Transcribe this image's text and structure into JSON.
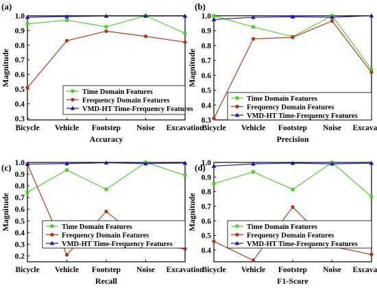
{
  "colors": {
    "time_domain": "#55cc33",
    "frequency_domain": "#b03a1a",
    "vmd_ht": "#1a1aaa"
  },
  "chart_data": [
    {
      "type": "line",
      "panel_label": "(a)",
      "xlabel": "Accuracy",
      "ylabel": "Magnitude",
      "categories": [
        "Bicycle",
        "Vehicle",
        "Footstep",
        "Noise",
        "Excavation"
      ],
      "ylim": [
        0.29,
        1.0
      ],
      "yticks": [
        "0.3",
        "0.4",
        "0.5",
        "0.6",
        "0.7",
        "0.8",
        "0.9",
        "1.0"
      ],
      "series": [
        {
          "name": "Time Domain Features",
          "marker": "square",
          "values": [
            0.945,
            0.97,
            0.925,
            1.0,
            0.88
          ]
        },
        {
          "name": "Frequency Domain Features",
          "marker": "circle",
          "values": [
            0.51,
            0.83,
            0.895,
            0.86,
            0.82
          ]
        },
        {
          "name": "VMD-HT Time-Frequency Features",
          "marker": "triangle",
          "values": [
            0.99,
            0.995,
            0.998,
            0.998,
            0.998
          ]
        }
      ]
    },
    {
      "type": "line",
      "panel_label": "(b)",
      "xlabel": "Precision",
      "ylabel": "Magnitude",
      "categories": [
        "Bicycle",
        "Vehicle",
        "Footstep",
        "Noise",
        "Excavation"
      ],
      "ylim": [
        0.3,
        1.0
      ],
      "yticks": [
        "0.3",
        "0.4",
        "0.5",
        "0.6",
        "0.7",
        "0.8",
        "0.9",
        "1.0"
      ],
      "series": [
        {
          "name": "Time Domain Features",
          "marker": "square",
          "values": [
            1.0,
            0.925,
            0.86,
            1.0,
            0.64
          ]
        },
        {
          "name": "Frequency Domain Features",
          "marker": "circle",
          "values": [
            0.31,
            0.845,
            0.855,
            0.965,
            0.62
          ]
        },
        {
          "name": "VMD-HT Time-Frequency Features",
          "marker": "triangle",
          "values": [
            0.975,
            0.99,
            0.993,
            0.99,
            1.0
          ]
        }
      ]
    },
    {
      "type": "line",
      "panel_label": "(c)",
      "xlabel": "Recall",
      "ylabel": "Magnitude",
      "categories": [
        "Bicycle",
        "Vehicle",
        "Footstep",
        "Noise",
        "Excavation"
      ],
      "ylim": [
        0.15,
        1.0
      ],
      "yticks": [
        "0.2",
        "0.3",
        "0.4",
        "0.5",
        "0.6",
        "0.7",
        "0.8",
        "0.9",
        "1.0"
      ],
      "series": [
        {
          "name": "Time Domain Features",
          "marker": "square",
          "values": [
            0.745,
            0.935,
            0.77,
            1.0,
            0.89
          ]
        },
        {
          "name": "Frequency Domain Features",
          "marker": "circle",
          "values": [
            0.985,
            0.21,
            0.58,
            0.31,
            0.26
          ]
        },
        {
          "name": "VMD-HT Time-Frequency Features",
          "marker": "triangle",
          "values": [
            0.985,
            0.99,
            0.997,
            0.99,
            0.995
          ]
        }
      ]
    },
    {
      "type": "line",
      "panel_label": "(d)",
      "xlabel": "F1-Score",
      "ylabel": "Magnitude",
      "categories": [
        "Bicycle",
        "Vehicle",
        "Footstep",
        "Noise",
        "Excavation"
      ],
      "ylim": [
        0.32,
        1.0
      ],
      "yticks": [
        "0.4",
        "0.5",
        "0.6",
        "0.7",
        "0.8",
        "0.9",
        "1.0"
      ],
      "series": [
        {
          "name": "Time Domain Features",
          "marker": "square",
          "values": [
            0.855,
            0.935,
            0.815,
            1.0,
            0.765
          ]
        },
        {
          "name": "Frequency Domain Features",
          "marker": "circle",
          "values": [
            0.46,
            0.33,
            0.695,
            0.425,
            0.37
          ]
        },
        {
          "name": "VMD-HT Time-Frequency Features",
          "marker": "triangle",
          "values": [
            0.975,
            0.99,
            0.995,
            0.99,
            0.995
          ]
        }
      ]
    }
  ]
}
